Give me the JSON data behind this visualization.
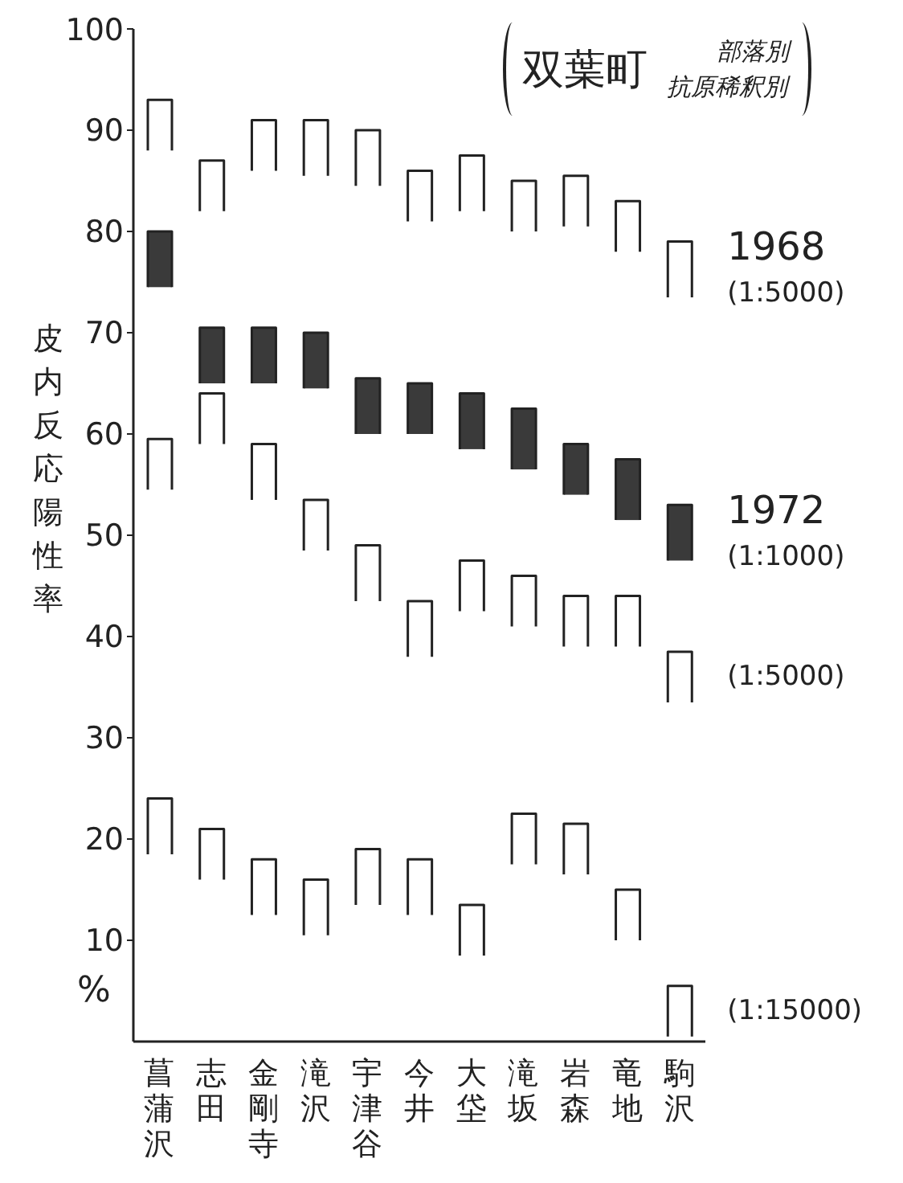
{
  "chart_data": {
    "type": "bar",
    "title": "双葉町",
    "subtitle": "部落別抗原稀釈別",
    "ylabel": "皮内反応陽性率",
    "annotations": [
      "%"
    ],
    "categories": [
      "菖蒲沢",
      "志田",
      "金剛寺",
      "滝沢",
      "宇津谷",
      "今井",
      "大垈",
      "滝坂",
      "岩森",
      "竜地",
      "駒沢"
    ],
    "ylim": [
      0,
      100
    ],
    "yticks": [
      10,
      20,
      30,
      40,
      50,
      60,
      70,
      80,
      90,
      100
    ],
    "series": [
      {
        "name": "1968 (1:5000)",
        "color": "#ffffff",
        "base": [
          88,
          82,
          86,
          85.5,
          84.5,
          81,
          82,
          80,
          80.5,
          78,
          73.5
        ],
        "values": [
          5,
          5,
          5,
          5.5,
          5.5,
          5,
          5.5,
          5,
          5,
          5,
          5.5
        ]
      },
      {
        "name": "1972 (1:1000)",
        "color": "#3a3a3a",
        "base": [
          74.5,
          65,
          65,
          64.5,
          60,
          60,
          58.5,
          56.5,
          54,
          51.5,
          47.5
        ],
        "values": [
          5.5,
          5.5,
          5.5,
          5.5,
          5.5,
          5,
          5.5,
          6,
          5,
          6,
          5.5
        ]
      },
      {
        "name": "(1:5000)",
        "color": "#ffffff",
        "base": [
          54.5,
          59,
          53.5,
          48.5,
          43.5,
          38,
          42.5,
          41,
          39,
          39,
          33.5
        ],
        "values": [
          5,
          5,
          5.5,
          5,
          5.5,
          5.5,
          5,
          5,
          5,
          5,
          5
        ]
      },
      {
        "name": "(1:15000)",
        "color": "#ffffff",
        "base": [
          18.5,
          16,
          12.5,
          10.5,
          13.5,
          12.5,
          8.5,
          17.5,
          16.5,
          10,
          0.5
        ],
        "values": [
          5.5,
          5,
          5.5,
          5.5,
          5.5,
          5.5,
          5,
          5,
          5,
          5,
          5
        ]
      }
    ]
  }
}
